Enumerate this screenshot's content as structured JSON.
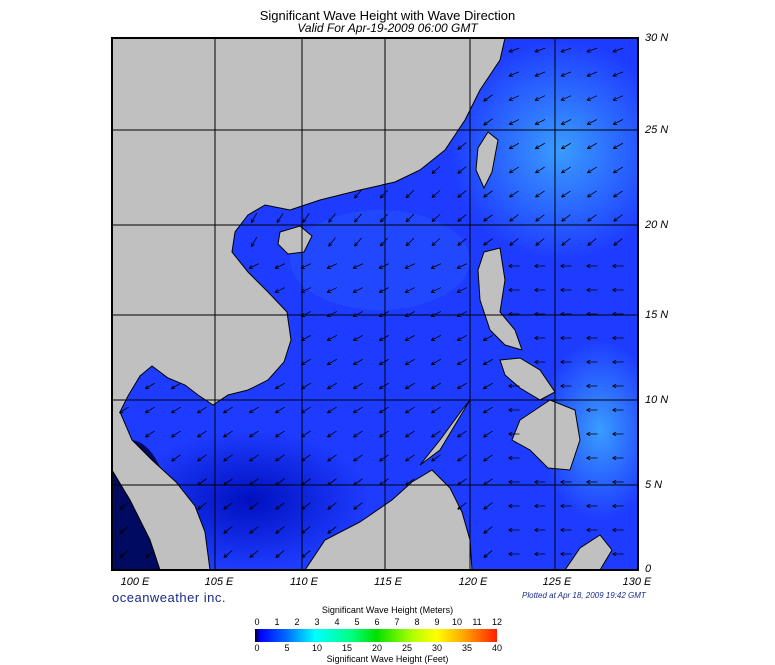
{
  "title": "Significant Wave Height with Wave Direction",
  "subtitle": "Valid For Apr-19-2009 06:00 GMT",
  "lon_labels": [
    "100 E",
    "105 E",
    "110 E",
    "115 E",
    "120 E",
    "125 E",
    "130 E"
  ],
  "lat_labels": [
    "30 N",
    "25 N",
    "20 N",
    "15 N",
    "10 N",
    "5 N",
    "0"
  ],
  "brand": "oceanweather inc.",
  "plotted": "Plotted at Apr 18, 2009 19:42 GMT",
  "colorbar": {
    "meters_title": "Significant Wave Height (Meters)",
    "feet_title": "Significant Wave Height (Feet)",
    "meters_ticks": [
      "0",
      "1",
      "2",
      "3",
      "4",
      "5",
      "6",
      "7",
      "8",
      "9",
      "10",
      "11",
      "12"
    ],
    "feet_ticks": [
      "0",
      "5",
      "10",
      "15",
      "20",
      "25",
      "30",
      "35",
      "40"
    ]
  },
  "colors": {
    "land": "#c0c0c0",
    "ocean": "#1e3cff",
    "ocean_light": "#2f8cff",
    "ocean_dark": "#0a1ad8"
  }
}
